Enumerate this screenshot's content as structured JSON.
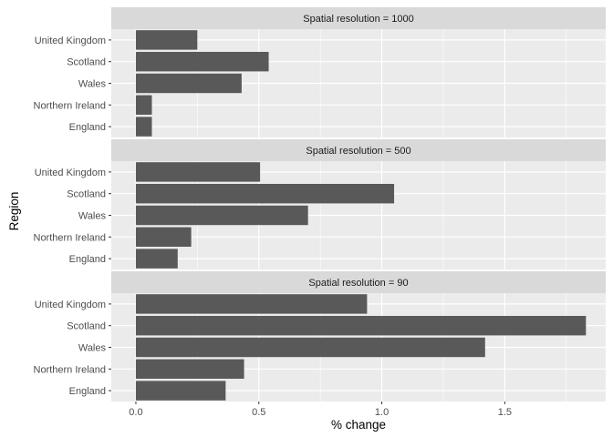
{
  "chart_data": {
    "type": "bar",
    "orientation": "horizontal",
    "title": "",
    "xlabel": "% change",
    "ylabel": "Region",
    "categories": [
      "United Kingdom",
      "Scotland",
      "Wales",
      "Northern Ireland",
      "England"
    ],
    "xlim": [
      -0.1,
      1.9
    ],
    "x_ticks": [
      "0.0",
      "0.5",
      "1.0",
      "1.5"
    ],
    "grid": true,
    "legend": "none",
    "bar_color": "#595959",
    "panel_bg": "#ebebeb",
    "strip_bg": "#d9d9d9",
    "facets": [
      {
        "label": "Spatial resolution = 1000",
        "values": [
          0.25,
          0.54,
          0.43,
          0.065,
          0.065
        ]
      },
      {
        "label": "Spatial resolution = 500",
        "values": [
          0.505,
          1.05,
          0.7,
          0.225,
          0.17
        ]
      },
      {
        "label": "Spatial resolution = 90",
        "values": [
          0.94,
          1.83,
          1.42,
          0.44,
          0.365
        ]
      }
    ]
  }
}
